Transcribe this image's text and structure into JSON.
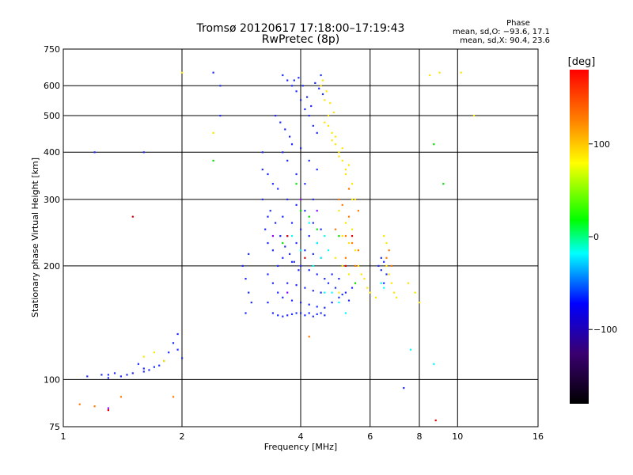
{
  "chart_data": {
    "type": "scatter",
    "title": "Tromsø 20120617 17:18:00–17:19:43",
    "subtitle": "RwPretec (8p)",
    "xlabel": "Frequency [MHz]",
    "ylabel": "Stationary phase Virtual Height [km]",
    "x_scale": "log",
    "y_scale": "log",
    "xlim": [
      1,
      16
    ],
    "ylim": [
      75,
      750
    ],
    "x_ticks": [
      1,
      2,
      4,
      6,
      8,
      10,
      16
    ],
    "x_tick_labels": [
      "1",
      "2",
      "4",
      "6",
      "8",
      "10",
      "16"
    ],
    "y_ticks": [
      75,
      100,
      200,
      300,
      400,
      500,
      600,
      750
    ],
    "y_tick_labels": [
      "75",
      "100",
      "200",
      "300",
      "400",
      "500",
      "600",
      "750"
    ],
    "grid": true,
    "phase_info": {
      "heading": "Phase",
      "line_o": "mean, sd,O: −93.6, 17.1",
      "line_x": "mean, sd,X:  90.4, 23.6"
    },
    "colorbar": {
      "label": "[deg]",
      "min": -180,
      "max": 180,
      "ticks": [
        100,
        0,
        -100
      ],
      "tick_labels": [
        "100",
        "0",
        "−100"
      ]
    },
    "series": [
      {
        "color": "#1f2aff",
        "phase_deg": -93.6,
        "points": [
          [
            1.15,
            102
          ],
          [
            1.25,
            103
          ],
          [
            1.3,
            101
          ],
          [
            1.4,
            102
          ],
          [
            1.5,
            104
          ],
          [
            1.6,
            105
          ],
          [
            1.7,
            108
          ],
          [
            1.8,
            112
          ],
          [
            1.9,
            125
          ],
          [
            2.0,
            114
          ],
          [
            1.55,
            110
          ],
          [
            1.65,
            106
          ],
          [
            1.75,
            109
          ],
          [
            1.85,
            118
          ],
          [
            1.95,
            132
          ],
          [
            1.45,
            103
          ],
          [
            1.35,
            104
          ],
          [
            1.95,
            120
          ],
          [
            1.6,
            107
          ],
          [
            1.3,
            103
          ],
          [
            2.85,
            200
          ],
          [
            2.9,
            185
          ],
          [
            2.95,
            170
          ],
          [
            3.0,
            160
          ],
          [
            2.9,
            150
          ],
          [
            2.95,
            215
          ],
          [
            3.2,
            400
          ],
          [
            3.3,
            350
          ],
          [
            3.2,
            300
          ],
          [
            3.25,
            250
          ],
          [
            3.3,
            230
          ],
          [
            3.4,
            220
          ],
          [
            3.5,
            200
          ],
          [
            3.3,
            190
          ],
          [
            3.4,
            180
          ],
          [
            3.5,
            170
          ],
          [
            3.3,
            160
          ],
          [
            3.4,
            150
          ],
          [
            3.5,
            148
          ],
          [
            3.6,
            147
          ],
          [
            3.7,
            148
          ],
          [
            3.8,
            149
          ],
          [
            3.9,
            150
          ],
          [
            4.0,
            150
          ],
          [
            4.1,
            148
          ],
          [
            4.2,
            150
          ],
          [
            4.3,
            147
          ],
          [
            4.4,
            149
          ],
          [
            4.5,
            150
          ],
          [
            4.6,
            148
          ],
          [
            3.6,
            640
          ],
          [
            3.7,
            620
          ],
          [
            3.8,
            600
          ],
          [
            3.9,
            580
          ],
          [
            4.0,
            550
          ],
          [
            4.1,
            520
          ],
          [
            4.2,
            500
          ],
          [
            4.3,
            470
          ],
          [
            4.4,
            450
          ],
          [
            4.5,
            640
          ],
          [
            3.6,
            400
          ],
          [
            3.8,
            420
          ],
          [
            4.0,
            410
          ],
          [
            4.2,
            380
          ],
          [
            4.4,
            360
          ],
          [
            3.7,
            380
          ],
          [
            3.9,
            350
          ],
          [
            4.1,
            330
          ],
          [
            4.3,
            300
          ],
          [
            3.5,
            320
          ],
          [
            3.7,
            300
          ],
          [
            3.9,
            290
          ],
          [
            4.1,
            280
          ],
          [
            4.3,
            260
          ],
          [
            4.5,
            250
          ],
          [
            3.6,
            270
          ],
          [
            3.8,
            260
          ],
          [
            4.0,
            250
          ],
          [
            4.2,
            240
          ],
          [
            4.4,
            230
          ],
          [
            3.7,
            240
          ],
          [
            3.9,
            230
          ],
          [
            4.1,
            220
          ],
          [
            4.3,
            215
          ],
          [
            4.5,
            210
          ],
          [
            3.6,
            210
          ],
          [
            3.8,
            205
          ],
          [
            4.0,
            200
          ],
          [
            4.2,
            195
          ],
          [
            4.4,
            190
          ],
          [
            4.6,
            185
          ],
          [
            3.7,
            180
          ],
          [
            3.9,
            178
          ],
          [
            4.1,
            175
          ],
          [
            4.3,
            172
          ],
          [
            4.5,
            170
          ],
          [
            3.6,
            165
          ],
          [
            3.8,
            162
          ],
          [
            4.0,
            160
          ],
          [
            4.2,
            158
          ],
          [
            4.4,
            156
          ],
          [
            4.6,
            155
          ],
          [
            4.8,
            160
          ],
          [
            5.0,
            165
          ],
          [
            5.2,
            170
          ],
          [
            5.4,
            175
          ],
          [
            6.3,
            200
          ],
          [
            6.4,
            195
          ],
          [
            6.5,
            205
          ],
          [
            6.4,
            210
          ],
          [
            6.6,
            190
          ],
          [
            6.5,
            180
          ],
          [
            3.95,
            630
          ],
          [
            4.05,
            600
          ],
          [
            4.15,
            560
          ],
          [
            4.25,
            530
          ],
          [
            3.45,
            500
          ],
          [
            3.55,
            480
          ],
          [
            3.65,
            460
          ],
          [
            3.75,
            440
          ],
          [
            3.85,
            620
          ],
          [
            4.35,
            610
          ],
          [
            4.45,
            590
          ],
          [
            4.55,
            570
          ],
          [
            2.5,
            600
          ],
          [
            2.5,
            500
          ],
          [
            1.2,
            400
          ],
          [
            1.6,
            400
          ],
          [
            2.4,
            650
          ],
          [
            7.3,
            95
          ],
          [
            4.7,
            180
          ],
          [
            4.9,
            175
          ],
          [
            5.1,
            168
          ],
          [
            5.3,
            162
          ],
          [
            4.8,
            190
          ],
          [
            5.0,
            185
          ],
          [
            3.3,
            270
          ],
          [
            3.4,
            330
          ],
          [
            3.2,
            360
          ],
          [
            3.35,
            280
          ],
          [
            3.45,
            260
          ],
          [
            3.55,
            240
          ],
          [
            3.65,
            225
          ],
          [
            3.75,
            215
          ],
          [
            3.85,
            205
          ],
          [
            3.95,
            195
          ]
        ]
      },
      {
        "color": "#ffe600",
        "phase_deg": 90.4,
        "points": [
          [
            4.5,
            600
          ],
          [
            4.6,
            550
          ],
          [
            4.7,
            500
          ],
          [
            4.8,
            450
          ],
          [
            4.9,
            420
          ],
          [
            5.0,
            400
          ],
          [
            5.1,
            380
          ],
          [
            5.2,
            350
          ],
          [
            5.3,
            320
          ],
          [
            5.4,
            300
          ],
          [
            4.6,
            480
          ],
          [
            4.8,
            430
          ],
          [
            5.0,
            390
          ],
          [
            5.2,
            360
          ],
          [
            5.4,
            330
          ],
          [
            5.5,
            300
          ],
          [
            4.7,
            470
          ],
          [
            4.9,
            440
          ],
          [
            5.1,
            410
          ],
          [
            5.3,
            370
          ],
          [
            5.0,
            280
          ],
          [
            5.2,
            260
          ],
          [
            5.4,
            250
          ],
          [
            5.1,
            240
          ],
          [
            5.3,
            230
          ],
          [
            5.5,
            220
          ],
          [
            4.9,
            210
          ],
          [
            5.1,
            200
          ],
          [
            5.3,
            190
          ],
          [
            5.5,
            180
          ],
          [
            6.6,
            200
          ],
          [
            6.7,
            190
          ],
          [
            6.8,
            180
          ],
          [
            6.9,
            170
          ],
          [
            7.0,
            165
          ],
          [
            6.5,
            240
          ],
          [
            6.6,
            230
          ],
          [
            7.5,
            180
          ],
          [
            7.8,
            170
          ],
          [
            8.0,
            160
          ],
          [
            4.55,
            620
          ],
          [
            4.65,
            580
          ],
          [
            4.75,
            540
          ],
          [
            4.85,
            510
          ],
          [
            5.6,
            200
          ],
          [
            5.7,
            190
          ],
          [
            5.8,
            185
          ],
          [
            5.9,
            175
          ],
          [
            6.0,
            170
          ],
          [
            6.2,
            165
          ],
          [
            1.6,
            115
          ],
          [
            1.7,
            118
          ],
          [
            1.8,
            112
          ],
          [
            2.0,
            650
          ],
          [
            2.4,
            450
          ],
          [
            9.0,
            650
          ],
          [
            8.5,
            640
          ],
          [
            10.2,
            650
          ],
          [
            11.0,
            500
          ],
          [
            5.0,
            170
          ]
        ]
      },
      {
        "color": "#ff7a00",
        "phase_deg": 150,
        "points": [
          [
            5.0,
            300
          ],
          [
            5.1,
            290
          ],
          [
            5.3,
            270
          ],
          [
            5.2,
            240
          ],
          [
            5.4,
            230
          ],
          [
            5.6,
            220
          ],
          [
            6.7,
            220
          ],
          [
            6.6,
            210
          ],
          [
            6.8,
            200
          ],
          [
            4.9,
            250
          ],
          [
            5.5,
            200
          ],
          [
            5.2,
            210
          ],
          [
            1.2,
            85
          ],
          [
            1.4,
            90
          ],
          [
            1.9,
            90
          ],
          [
            1.1,
            86
          ],
          [
            4.2,
            130
          ],
          [
            5.3,
            320
          ],
          [
            5.6,
            280
          ]
        ]
      },
      {
        "color": "#00ffff",
        "phase_deg": 30,
        "points": [
          [
            4.3,
            200
          ],
          [
            4.5,
            210
          ],
          [
            4.7,
            220
          ],
          [
            4.4,
            230
          ],
          [
            4.6,
            240
          ],
          [
            5.0,
            160
          ],
          [
            5.2,
            150
          ],
          [
            4.8,
            170
          ],
          [
            6.4,
            180
          ],
          [
            3.8,
            240
          ],
          [
            4.0,
            220
          ],
          [
            4.2,
            260
          ],
          [
            4.6,
            170
          ],
          [
            6.5,
            175
          ],
          [
            7.6,
            120
          ],
          [
            8.7,
            110
          ]
        ]
      },
      {
        "color": "#00e000",
        "phase_deg": 45,
        "points": [
          [
            4.0,
            280
          ],
          [
            4.2,
            270
          ],
          [
            4.4,
            250
          ],
          [
            3.6,
            230
          ],
          [
            5.5,
            180
          ],
          [
            5.0,
            240
          ],
          [
            2.4,
            380
          ],
          [
            8.7,
            420
          ],
          [
            9.2,
            330
          ],
          [
            3.9,
            330
          ]
        ]
      },
      {
        "color": "#e00000",
        "phase_deg": 175,
        "points": [
          [
            3.7,
            240
          ],
          [
            5.2,
            200
          ],
          [
            4.1,
            210
          ],
          [
            1.3,
            83
          ],
          [
            5.4,
            240
          ],
          [
            1.5,
            270
          ],
          [
            8.8,
            78
          ]
        ]
      },
      {
        "color": "#8a00ff",
        "phase_deg": -150,
        "points": [
          [
            3.4,
            240
          ],
          [
            4.0,
            300
          ],
          [
            4.4,
            280
          ],
          [
            3.7,
            170
          ],
          [
            1.3,
            84
          ]
        ]
      }
    ]
  }
}
